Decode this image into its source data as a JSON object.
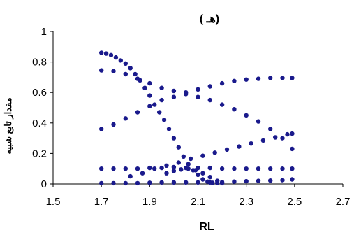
{
  "chart_data": {
    "type": "scatter",
    "title": "( هـ)",
    "xlabel": "RL",
    "ylabel": "مقدار تابع شبیه",
    "xlim": [
      1.5,
      2.7
    ],
    "ylim": [
      0,
      1
    ],
    "xticks": [
      "1.5",
      "1.7",
      "1.9",
      "2.1",
      "2.3",
      "2.5",
      "2.7"
    ],
    "yticks": [
      "0",
      "0.2",
      "0.4",
      "0.6",
      "0.8",
      "1"
    ],
    "grid": false,
    "legend": "none",
    "marker_color": "#1a1a8c",
    "series": [
      {
        "x": [
          1.7,
          1.72,
          1.74,
          1.76,
          1.78,
          1.8,
          1.82,
          1.84,
          1.86,
          1.88,
          1.9,
          1.92,
          1.94,
          1.96,
          1.98,
          2.0,
          2.02,
          2.04,
          2.06,
          2.08,
          2.1,
          2.12,
          2.14,
          2.16,
          2.18,
          2.2
        ],
        "y": [
          0.86,
          0.855,
          0.845,
          0.83,
          0.81,
          0.79,
          0.76,
          0.72,
          0.68,
          0.63,
          0.58,
          0.52,
          0.47,
          0.42,
          0.36,
          0.3,
          0.24,
          0.18,
          0.13,
          0.09,
          0.06,
          0.03,
          0.015,
          0.008,
          0.006,
          0.005
        ]
      },
      {
        "x": [
          1.7,
          1.75,
          1.8,
          1.85,
          1.9,
          1.95,
          2.0,
          2.05,
          2.1,
          2.15,
          2.2,
          2.25,
          2.3,
          2.35,
          2.4,
          2.45,
          2.49
        ],
        "y": [
          0.745,
          0.74,
          0.72,
          0.69,
          0.66,
          0.63,
          0.61,
          0.59,
          0.57,
          0.55,
          0.52,
          0.49,
          0.45,
          0.41,
          0.36,
          0.3,
          0.23
        ]
      },
      {
        "x": [
          1.7,
          1.75,
          1.8,
          1.85,
          1.9,
          1.95,
          2.0,
          2.05,
          2.1,
          2.15,
          2.2,
          2.25,
          2.3,
          2.35,
          2.4,
          2.45,
          2.49
        ],
        "y": [
          0.36,
          0.39,
          0.43,
          0.47,
          0.51,
          0.55,
          0.57,
          0.6,
          0.62,
          0.64,
          0.66,
          0.675,
          0.685,
          0.69,
          0.695,
          0.695,
          0.695
        ]
      },
      {
        "x": [
          1.7,
          1.75,
          1.8,
          1.85,
          1.9,
          1.95,
          2.0,
          2.05,
          2.1,
          2.15,
          2.2,
          2.25,
          2.3,
          2.35,
          2.4,
          2.45,
          2.49
        ],
        "y": [
          0.1,
          0.1,
          0.1,
          0.1,
          0.105,
          0.105,
          0.11,
          0.105,
          0.105,
          0.105,
          0.1,
          0.1,
          0.1,
          0.1,
          0.1,
          0.1,
          0.1
        ]
      },
      {
        "x": [
          1.82,
          1.87,
          1.92,
          1.97,
          2.02,
          2.07,
          2.12,
          2.17,
          2.22,
          2.27,
          2.32,
          2.37,
          2.42,
          2.47,
          2.49
        ],
        "y": [
          0.05,
          0.07,
          0.1,
          0.12,
          0.14,
          0.165,
          0.185,
          0.205,
          0.225,
          0.245,
          0.265,
          0.285,
          0.305,
          0.325,
          0.33
        ]
      },
      {
        "x": [
          1.7,
          1.75,
          1.8,
          1.85,
          1.9,
          1.95,
          2.0,
          2.05,
          2.1,
          2.15,
          2.2,
          2.25,
          2.3,
          2.35,
          2.4,
          2.45,
          2.49
        ],
        "y": [
          0.005,
          0.005,
          0.005,
          0.005,
          0.008,
          0.01,
          0.01,
          0.01,
          0.01,
          0.01,
          0.012,
          0.015,
          0.018,
          0.02,
          0.022,
          0.025,
          0.03
        ]
      },
      {
        "x": [
          1.97,
          2.0,
          2.03,
          2.06,
          2.09,
          2.12,
          2.15,
          2.18
        ],
        "y": [
          0.07,
          0.085,
          0.095,
          0.1,
          0.09,
          0.07,
          0.045,
          0.02
        ]
      }
    ]
  }
}
